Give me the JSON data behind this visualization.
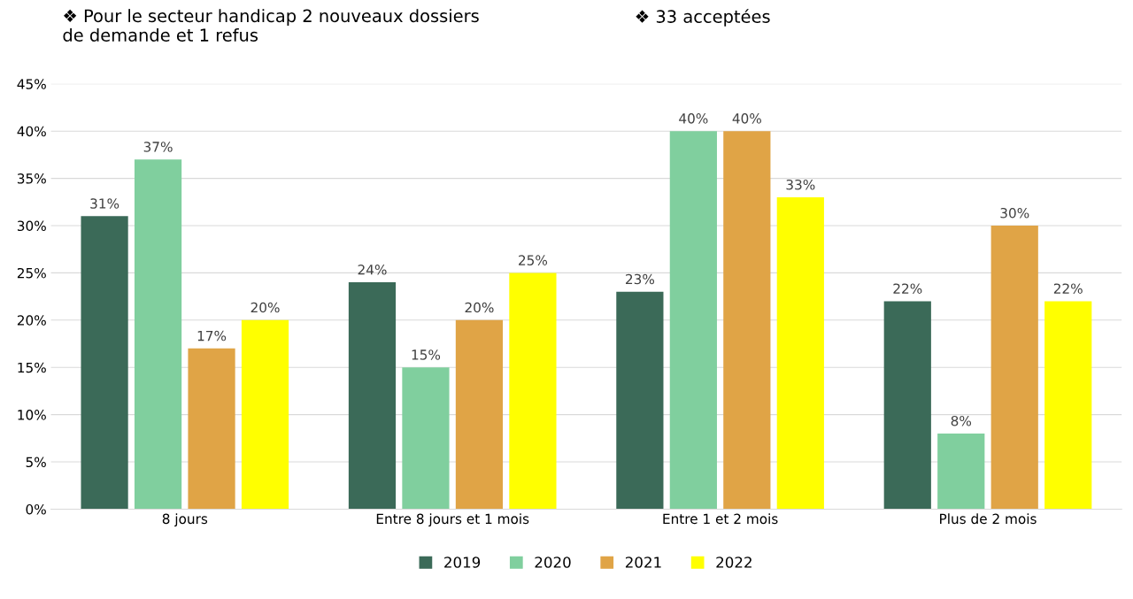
{
  "chart_data": {
    "type": "bar",
    "annotations": [
      "❖ Pour le secteur handicap 2 nouveaux dossiers\nde demande et 1 refus",
      "❖ 33 acceptées"
    ],
    "categories": [
      "8 jours",
      "Entre 8 jours et 1 mois",
      "Entre 1 et 2 mois",
      "Plus de 2 mois"
    ],
    "series": [
      {
        "name": "2019",
        "color": "#3b6a58",
        "values": [
          31,
          24,
          23,
          22
        ],
        "value_labels": [
          "31%",
          "24%",
          "23%",
          "22%"
        ]
      },
      {
        "name": "2020",
        "color": "#80cf9e",
        "values": [
          37,
          15,
          40,
          8
        ],
        "value_labels": [
          "37%",
          "15%",
          "40%",
          "8%"
        ]
      },
      {
        "name": "2021",
        "color": "#e0a446",
        "values": [
          17,
          20,
          40,
          30
        ],
        "value_labels": [
          "17%",
          "20%",
          "40%",
          "30%"
        ]
      },
      {
        "name": "2022",
        "color": "#ffff00",
        "values": [
          20,
          25,
          33,
          22
        ],
        "value_labels": [
          "20%",
          "25%",
          "33%",
          "22%"
        ]
      }
    ],
    "ylim": [
      0,
      45
    ],
    "yticks": [
      {
        "value": 0,
        "label": "0%"
      },
      {
        "value": 5,
        "label": "5%"
      },
      {
        "value": 10,
        "label": "10%"
      },
      {
        "value": 15,
        "label": "15%"
      },
      {
        "value": 20,
        "label": "20%"
      },
      {
        "value": 25,
        "label": "25%"
      },
      {
        "value": 30,
        "label": "30%"
      },
      {
        "value": 35,
        "label": "35%"
      },
      {
        "value": 40,
        "label": "40%"
      },
      {
        "value": 45,
        "label": "45%"
      }
    ],
    "grid": "y",
    "legend": "bottom"
  }
}
